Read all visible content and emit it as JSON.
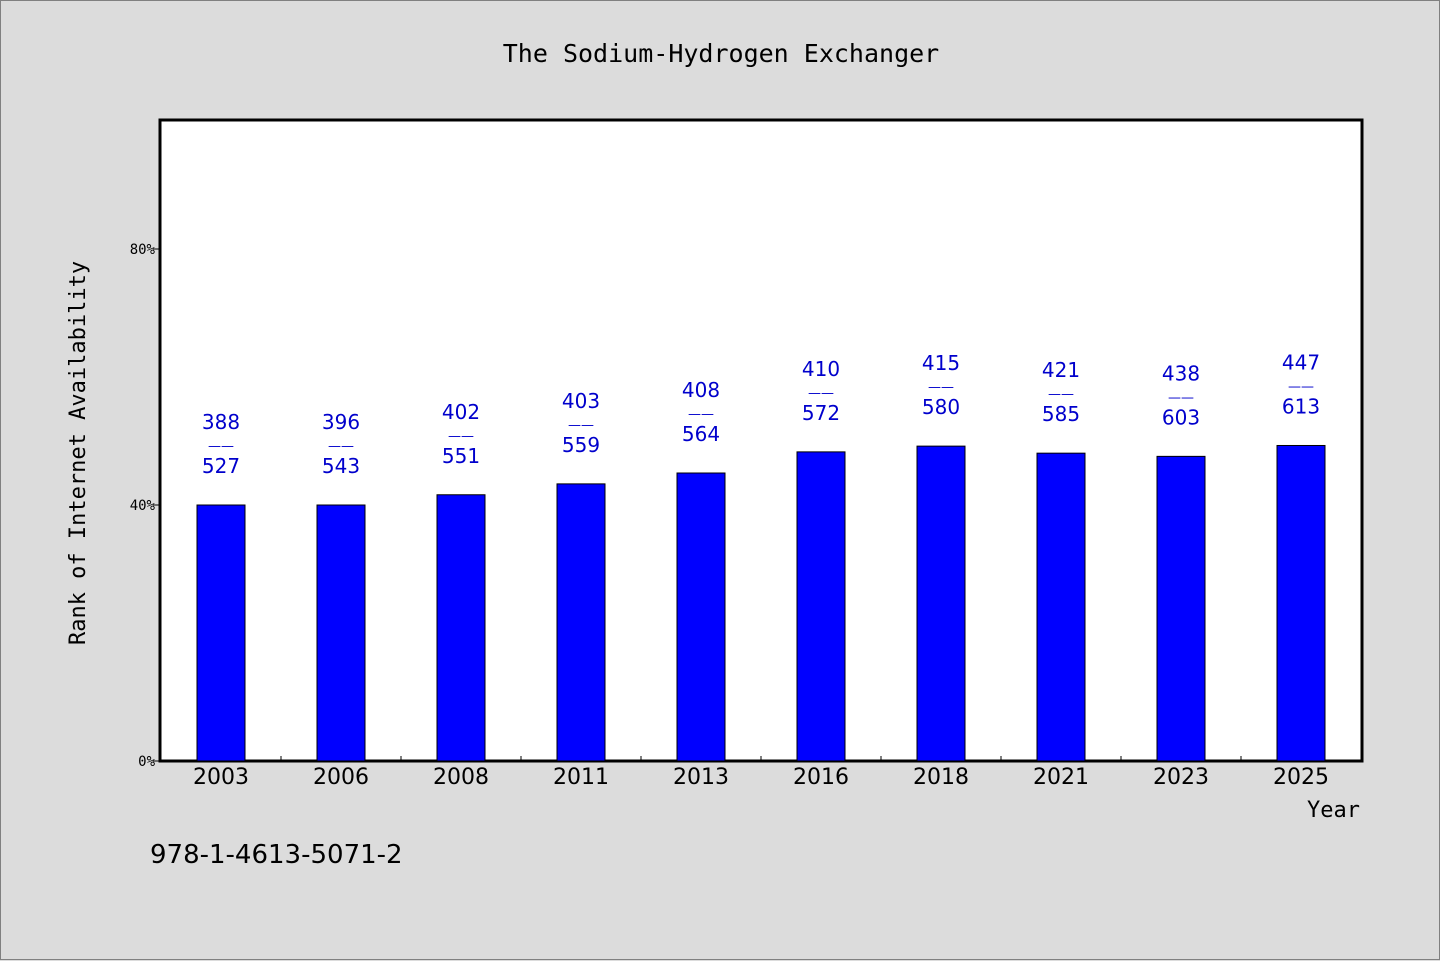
{
  "chart_data": {
    "type": "bar",
    "title": "The Sodium-Hydrogen Exchanger",
    "xlabel": "Year",
    "ylabel": "Rank of Internet Availability",
    "ylim": [
      0,
      100
    ],
    "y_ticks": [
      0,
      40,
      80
    ],
    "y_tick_labels": [
      "0%",
      "40%",
      "80%"
    ],
    "grid": false,
    "categories": [
      "2003",
      "2006",
      "2008",
      "2011",
      "2013",
      "2016",
      "2018",
      "2021",
      "2023",
      "2025"
    ],
    "values": [
      40,
      40,
      41.6,
      43.3,
      45,
      48.3,
      49.2,
      48.1,
      47.6,
      49.3
    ],
    "bar_color": "#0000ff",
    "label_color": "#0000cc",
    "data_labels": [
      {
        "top": "388",
        "sep": "——",
        "bottom": "527"
      },
      {
        "top": "396",
        "sep": "——",
        "bottom": "543"
      },
      {
        "top": "402",
        "sep": "——",
        "bottom": "551"
      },
      {
        "top": "403",
        "sep": "——",
        "bottom": "559"
      },
      {
        "top": "408",
        "sep": "——",
        "bottom": "564"
      },
      {
        "top": "410",
        "sep": "——",
        "bottom": "572"
      },
      {
        "top": "415",
        "sep": "——",
        "bottom": "580"
      },
      {
        "top": "421",
        "sep": "——",
        "bottom": "585"
      },
      {
        "top": "438",
        "sep": "——",
        "bottom": "603"
      },
      {
        "top": "447",
        "sep": "——",
        "bottom": "613"
      }
    ]
  },
  "footer": {
    "code": "978-1-4613-5071-2"
  }
}
